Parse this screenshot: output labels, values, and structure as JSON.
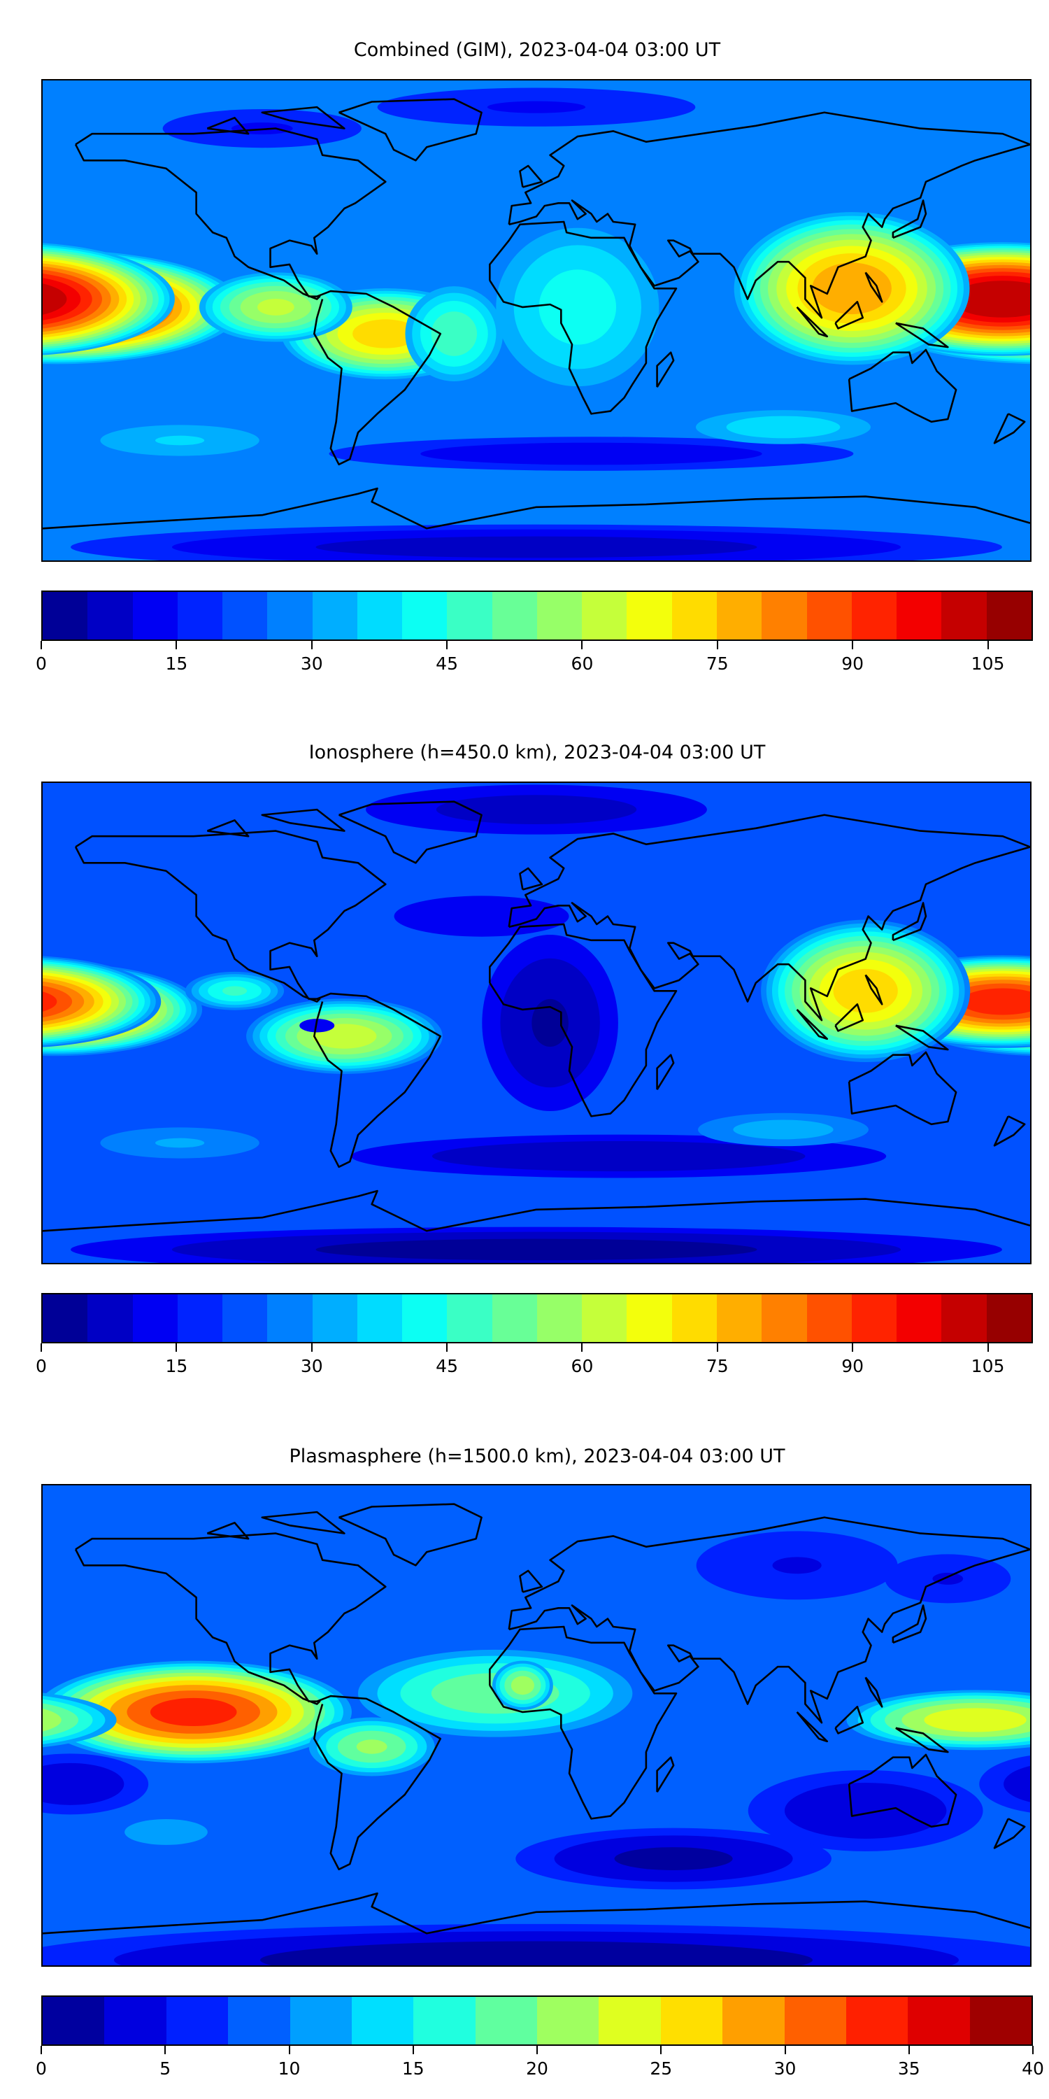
{
  "panels": [
    {
      "title": "Combined (GIM), 2023-04-04 03:00 UT",
      "colorbar": {
        "min": 0,
        "max": 110,
        "step": 5,
        "ticks": [
          "0",
          "15",
          "30",
          "45",
          "60",
          "75",
          "90",
          "105"
        ]
      },
      "background_value": 25
    },
    {
      "title": "Ionosphere  (h=450.0 km), 2023-04-04 03:00 UT",
      "colorbar": {
        "min": 0,
        "max": 110,
        "step": 5,
        "ticks": [
          "0",
          "15",
          "30",
          "45",
          "60",
          "75",
          "90",
          "105"
        ]
      },
      "background_value": 20
    },
    {
      "title": "Plasmasphere (h=1500.0 km), 2023-04-04 03:00 UT",
      "colorbar": {
        "min": 0,
        "max": 40,
        "step": 2.5,
        "ticks": [
          "0",
          "5",
          "10",
          "15",
          "20",
          "25",
          "30",
          "35",
          "40"
        ]
      },
      "background_value": 8
    }
  ],
  "colormap": "jet"
}
